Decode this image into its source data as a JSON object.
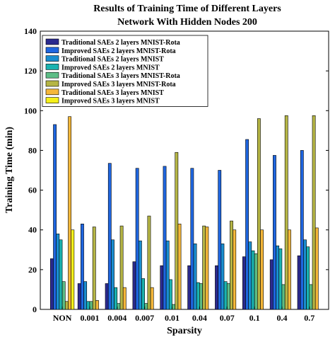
{
  "chart_data": {
    "type": "bar",
    "title_lines": [
      "Results of Training Time of Different Layers",
      "Network With Hidden Nodes 200"
    ],
    "xlabel": "Sparsity",
    "ylabel": "Training Time (min)",
    "ylim": [
      0,
      140
    ],
    "yticks": [
      0,
      20,
      40,
      60,
      80,
      100,
      120,
      140
    ],
    "grid": false,
    "legend_position": "top-left",
    "categories": [
      "NON",
      "0.001",
      "0.004",
      "0.007",
      "0.01",
      "0.04",
      "0.07",
      "0.1",
      "0.4",
      "0.7"
    ],
    "series": [
      {
        "name": "Traditional SAEs 2 layers MNIST-Rota",
        "color": "#2b2a8e",
        "values": [
          25.5,
          13.0,
          13.0,
          24.0,
          22.0,
          22.0,
          22.0,
          26.5,
          25.0,
          27.0
        ]
      },
      {
        "name": "Improved SAEs 2 layers MNIST-Rota",
        "color": "#1f66e0",
        "values": [
          93.0,
          43.0,
          73.5,
          71.0,
          72.0,
          71.0,
          70.0,
          85.5,
          77.5,
          80.0
        ]
      },
      {
        "name": "Traditional SAEs 2 layers MNIST",
        "color": "#1a8ed0",
        "values": [
          38.0,
          14.0,
          35.0,
          34.5,
          34.5,
          33.0,
          33.0,
          34.0,
          32.0,
          35.0
        ]
      },
      {
        "name": "Improved SAEs 2 layers MNIST",
        "color": "#1bb3b0",
        "values": [
          35.0,
          4.0,
          11.0,
          15.5,
          15.0,
          13.5,
          14.0,
          29.5,
          30.5,
          31.5
        ]
      },
      {
        "name": "Traditional SAEs 3 layers MNIST-Rota",
        "color": "#5dbd86",
        "values": [
          14.0,
          4.0,
          3.0,
          3.0,
          2.5,
          13.0,
          13.0,
          28.0,
          12.5,
          12.5
        ]
      },
      {
        "name": "Improved SAEs 3 layers MNIST-Rota",
        "color": "#b5b545",
        "values": [
          4.0,
          41.5,
          42.0,
          47.0,
          79.0,
          42.0,
          44.5,
          96.0,
          97.5,
          97.5
        ]
      },
      {
        "name": "Traditional SAEs 3 layers MNIST",
        "color": "#f5b73a",
        "values": [
          97.0,
          4.5,
          11.0,
          11.0,
          43.0,
          41.5,
          40.0,
          40.0,
          40.0,
          41.0
        ]
      },
      {
        "name": "Improved SAEs 3 layers MNIST",
        "color": "#f5f01a",
        "values": [
          40.0,
          0,
          0,
          0,
          0,
          0,
          0,
          0,
          0,
          0
        ]
      }
    ]
  }
}
